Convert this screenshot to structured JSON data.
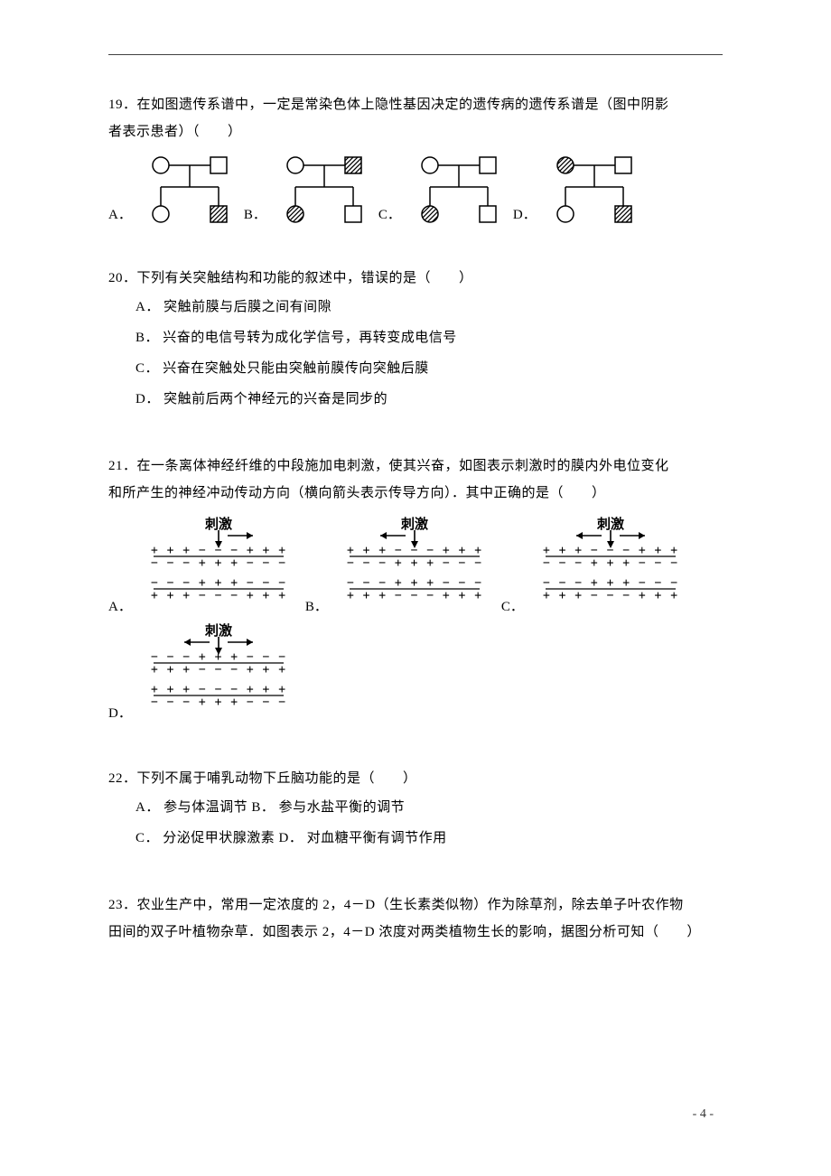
{
  "page": {
    "footer": "- 4 -"
  },
  "colors": {
    "text": "#000000",
    "line": "#000000",
    "hatch": "#000000",
    "bg": "#ffffff"
  },
  "q19": {
    "l1": "19．在如图遗传系谱中，一定是常染色体上隐性基因决定的遗传病的遗传系谱是（图中阴影",
    "l2": "者表示患者）（　　）",
    "optA": "A．",
    "optB": "B．",
    "optC": "C．",
    "optD": "D．",
    "pedigrees": [
      {
        "p1": {
          "shape": "circle",
          "fill": "none"
        },
        "p2": {
          "shape": "square",
          "fill": "none"
        },
        "c1": {
          "shape": "circle",
          "fill": "none"
        },
        "c2": {
          "shape": "square",
          "fill": "hatch"
        }
      },
      {
        "p1": {
          "shape": "circle",
          "fill": "none"
        },
        "p2": {
          "shape": "square",
          "fill": "hatch"
        },
        "c1": {
          "shape": "circle",
          "fill": "hatch"
        },
        "c2": {
          "shape": "square",
          "fill": "none"
        }
      },
      {
        "p1": {
          "shape": "circle",
          "fill": "none"
        },
        "p2": {
          "shape": "square",
          "fill": "none"
        },
        "c1": {
          "shape": "circle",
          "fill": "hatch"
        },
        "c2": {
          "shape": "square",
          "fill": "none"
        }
      },
      {
        "p1": {
          "shape": "circle",
          "fill": "hatch"
        },
        "p2": {
          "shape": "square",
          "fill": "none"
        },
        "c1": {
          "shape": "circle",
          "fill": "none"
        },
        "c2": {
          "shape": "square",
          "fill": "hatch"
        }
      }
    ]
  },
  "q20": {
    "stem": "20．下列有关突触结构和功能的叙述中，错误的是（　　）",
    "A": "A．  突触前膜与后膜之间有间隙",
    "B": "B．  兴奋的电信号转为成化学信号，再转变成电信号",
    "C": "C．  兴奋在突触处只能由突触前膜传向突触后膜",
    "D": "D．  突触前后两个神经元的兴奋是同步的"
  },
  "q21": {
    "l1": "21．在一条离体神经纤维的中段施加电刺激，使其兴奋，如图表示刺激时的膜内外电位变化",
    "l2": "和所产生的神经冲动传动方向（横向箭头表示传导方向）．其中正确的是（　　）",
    "optA": "A．",
    "optB": "B．",
    "optC": "C．",
    "optD": "D．",
    "stims": [
      {
        "arrows": "right",
        "r1": "+ + + − − − + + +",
        "r2": "− − − + + + − − −",
        "r3": "− − − + + + − − −",
        "r4": "+ + + − − − + + +"
      },
      {
        "arrows": "left",
        "r1": "+ + + − − − + + +",
        "r2": "− − − + + + − − −",
        "r3": "− − − + + + − − −",
        "r4": "+ + + − − − + + +"
      },
      {
        "arrows": "both",
        "r1": "+ + + − − − + + +",
        "r2": "− − − + + + − − −",
        "r3": "− − − + + + − − −",
        "r4": "+ + + − − − + + +"
      },
      {
        "arrows": "both",
        "r1": "− − − + + + − − −",
        "r2": "+ + + − − − + + +",
        "r3": "+ + + − − − + + +",
        "r4": "− − − + + + − − −"
      }
    ],
    "stim_label": "刺激"
  },
  "q22": {
    "stem": "22．下列不属于哺乳动物下丘脑功能的是（　　）",
    "line1": "A．  参与体温调节 B．  参与水盐平衡的调节",
    "line2": "C．  分泌促甲状腺激素 D．  对血糖平衡有调节作用"
  },
  "q23": {
    "l1": "23．农业生产中，常用一定浓度的 2，4－D（生长素类似物）作为除草剂，除去单子叶农作物",
    "l2": "田间的双子叶植物杂草．如图表示 2，4－D 浓度对两类植物生长的影响，据图分析可知（　　）"
  }
}
